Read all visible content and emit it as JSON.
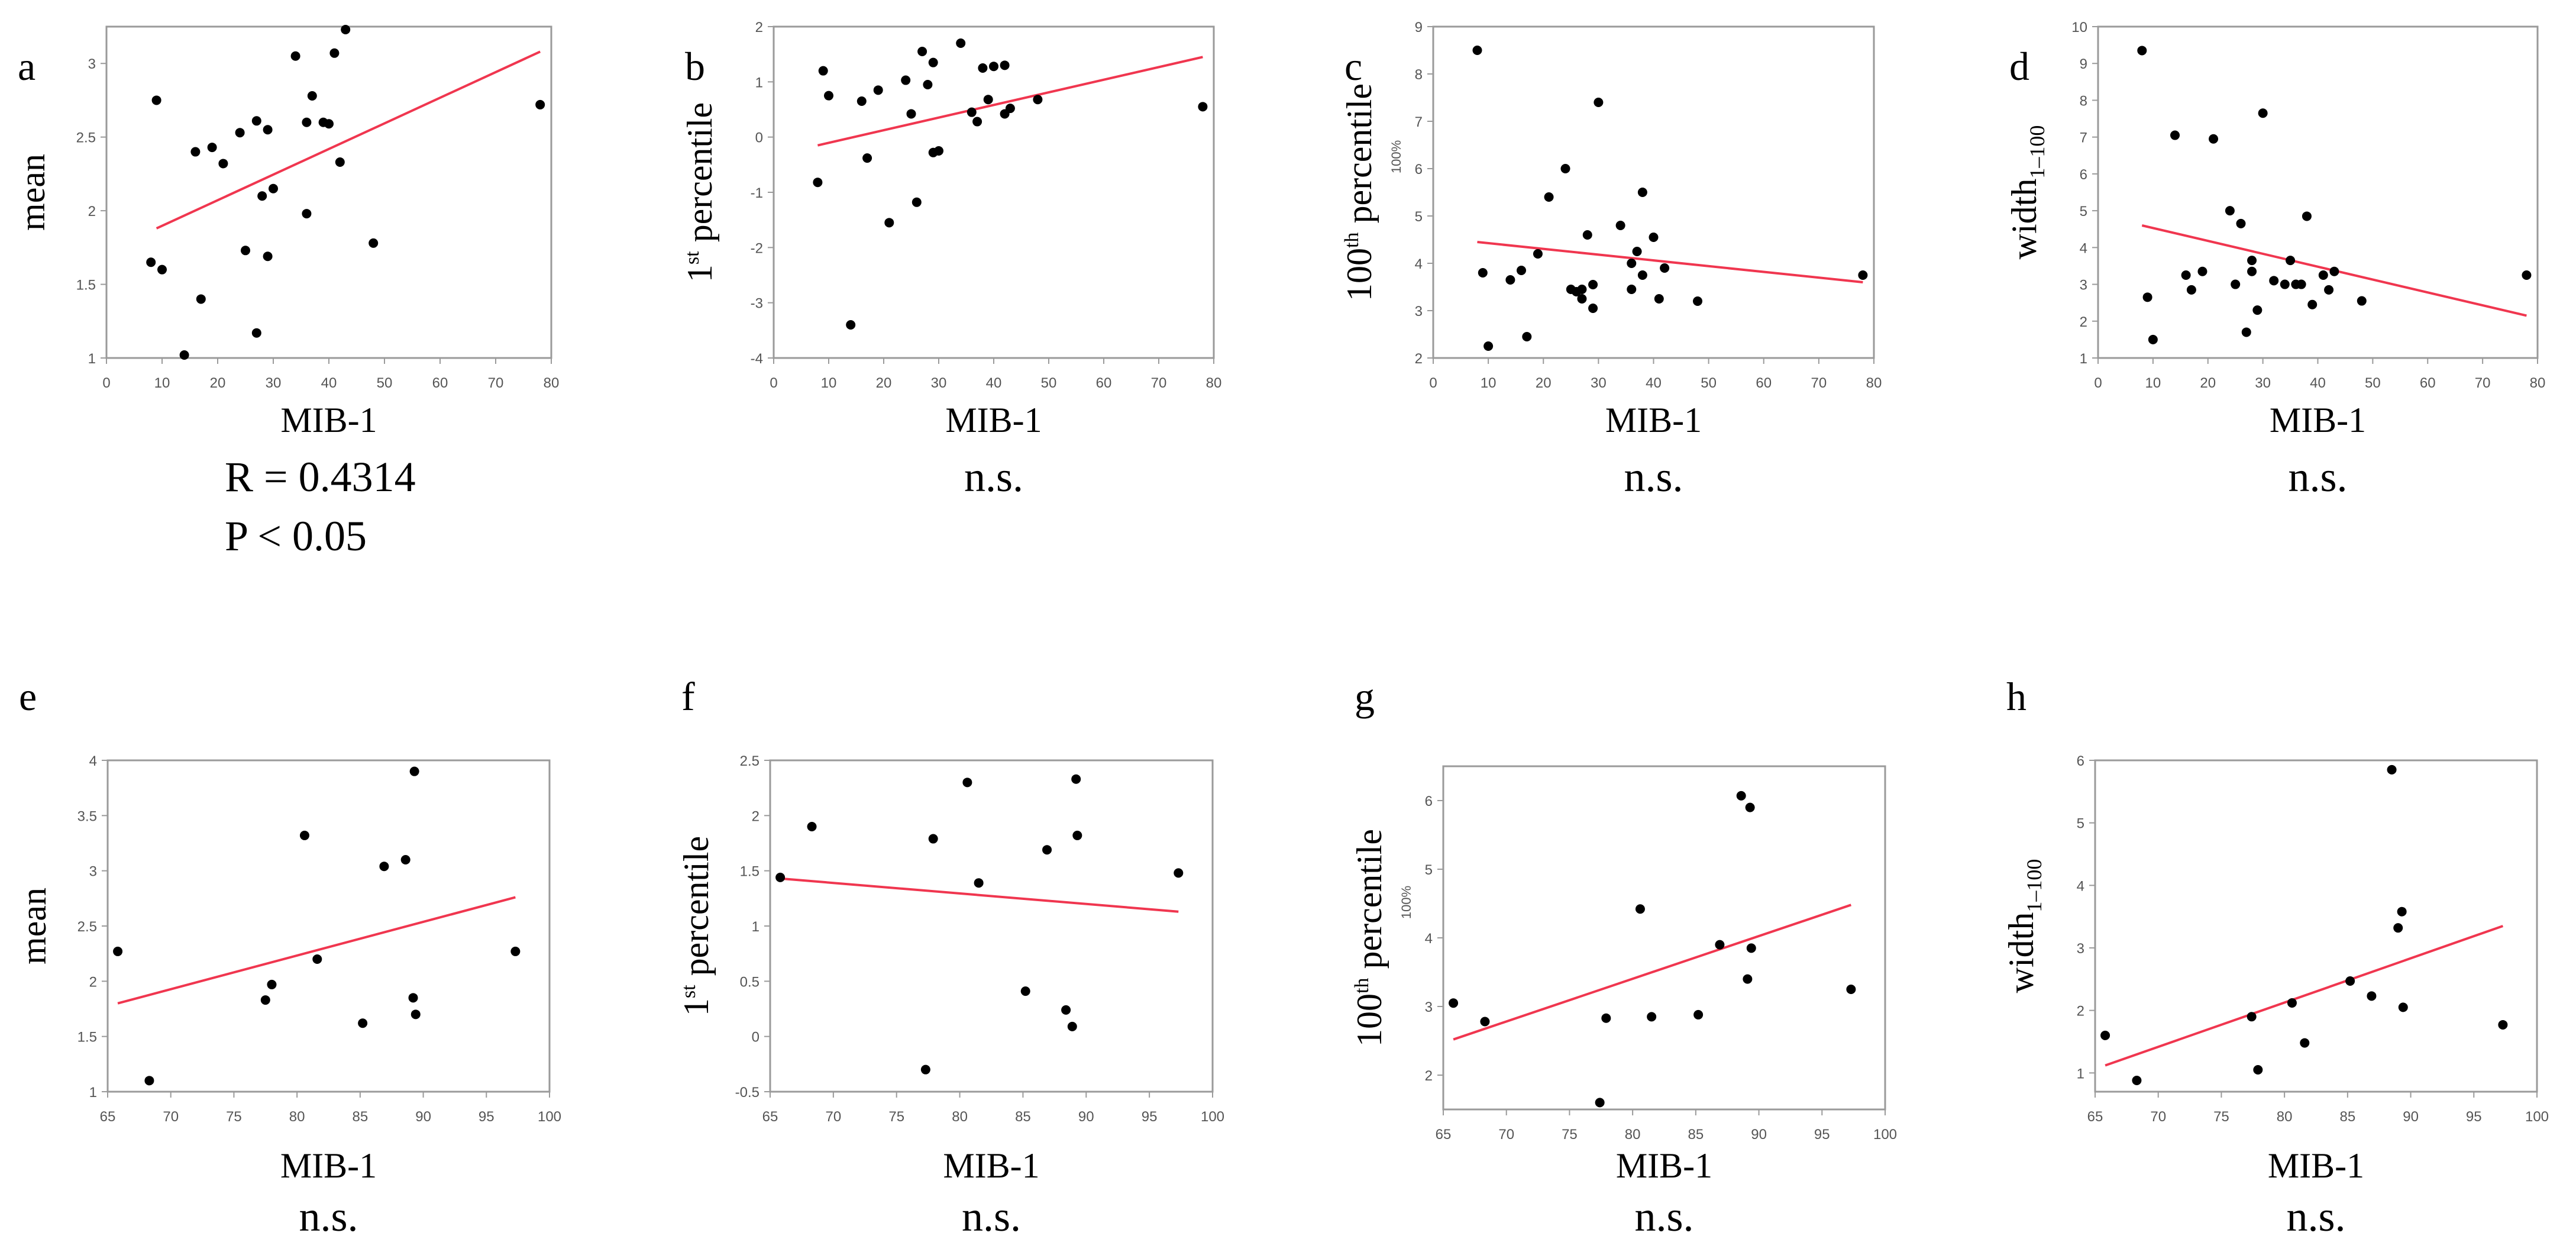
{
  "colors": {
    "axis": "#9a9a9a",
    "point": "#000000",
    "fit": "#f0364f",
    "text": "#000000",
    "tick": "#555555"
  },
  "chart_data": [
    {
      "panel_label": "a",
      "type": "scatter",
      "xlabel": "MIB-1",
      "ylabel": "mean",
      "ylabel_parts": [],
      "xlim": [
        0,
        80
      ],
      "ylim": [
        1,
        3.25
      ],
      "xticks": [
        0,
        10,
        20,
        30,
        40,
        50,
        60,
        70,
        80
      ],
      "xtick_labels": [
        "0",
        "10",
        "20",
        "30",
        "40",
        "50",
        "60",
        "70",
        "80"
      ],
      "yticks": [
        1,
        1.5,
        2,
        2.5,
        3
      ],
      "ytick_labels": [
        "1",
        "1.5",
        "2",
        "2.5",
        "3"
      ],
      "points": [
        [
          8,
          1.65
        ],
        [
          9,
          2.75
        ],
        [
          10,
          1.6
        ],
        [
          14,
          1.02
        ],
        [
          16,
          2.4
        ],
        [
          17,
          1.4
        ],
        [
          19,
          2.43
        ],
        [
          21,
          2.32
        ],
        [
          24,
          2.53
        ],
        [
          25,
          1.73
        ],
        [
          27,
          2.61
        ],
        [
          27,
          1.17
        ],
        [
          28,
          2.1
        ],
        [
          29,
          1.69
        ],
        [
          29,
          2.55
        ],
        [
          30,
          2.15
        ],
        [
          34,
          3.05
        ],
        [
          36,
          2.6
        ],
        [
          36,
          1.98
        ],
        [
          37,
          2.78
        ],
        [
          39,
          2.6
        ],
        [
          40,
          2.59
        ],
        [
          41,
          3.07
        ],
        [
          42,
          2.33
        ],
        [
          43,
          3.23
        ],
        [
          48,
          1.78
        ],
        [
          78,
          2.72
        ]
      ],
      "fit_line": [
        [
          9,
          1.88
        ],
        [
          78,
          3.08
        ]
      ],
      "stats": [
        "R = 0.4314",
        "P < 0.05"
      ]
    },
    {
      "panel_label": "b",
      "type": "scatter",
      "xlabel": "MIB-1",
      "ylabel": "",
      "ylabel_parts": [
        "1",
        "st",
        " percentile"
      ],
      "xlim": [
        0,
        80
      ],
      "ylim": [
        -4,
        2
      ],
      "xticks": [
        0,
        10,
        20,
        30,
        40,
        50,
        60,
        70,
        80
      ],
      "xtick_labels": [
        "0",
        "10",
        "20",
        "30",
        "40",
        "50",
        "60",
        "70",
        "80"
      ],
      "yticks": [
        -4,
        -3,
        -2,
        -1,
        0,
        1,
        2
      ],
      "ytick_labels": [
        "-4",
        "-3",
        "-2",
        "-1",
        "0",
        "1",
        "2"
      ],
      "points": [
        [
          8,
          -0.82
        ],
        [
          9,
          1.2
        ],
        [
          10,
          0.75
        ],
        [
          14,
          -3.4
        ],
        [
          16,
          0.65
        ],
        [
          17,
          -0.38
        ],
        [
          19,
          0.85
        ],
        [
          21,
          -1.55
        ],
        [
          24,
          1.03
        ],
        [
          25,
          0.42
        ],
        [
          26,
          -1.18
        ],
        [
          27,
          1.55
        ],
        [
          28,
          0.95
        ],
        [
          29,
          1.35
        ],
        [
          29,
          -0.28
        ],
        [
          30,
          -0.25
        ],
        [
          34,
          1.7
        ],
        [
          36,
          0.45
        ],
        [
          37,
          0.28
        ],
        [
          38,
          1.25
        ],
        [
          39,
          0.68
        ],
        [
          40,
          1.28
        ],
        [
          42,
          1.3
        ],
        [
          42,
          0.42
        ],
        [
          43,
          0.52
        ],
        [
          48,
          0.68
        ],
        [
          78,
          0.55
        ]
      ],
      "fit_line": [
        [
          8,
          -0.15
        ],
        [
          78,
          1.45
        ]
      ],
      "stats": [
        "n.s."
      ]
    },
    {
      "panel_label": "c",
      "type": "scatter",
      "xlabel": "MIB-1",
      "ylabel": "",
      "ylabel_parts": [
        "100",
        "th",
        " percentile"
      ],
      "ylabel_small": "100%",
      "xlim": [
        0,
        80
      ],
      "ylim": [
        2,
        9
      ],
      "xticks": [
        0,
        10,
        20,
        30,
        40,
        50,
        60,
        70,
        80
      ],
      "xtick_labels": [
        "0",
        "10",
        "20",
        "30",
        "40",
        "50",
        "60",
        "70",
        "80"
      ],
      "yticks": [
        2,
        3,
        4,
        5,
        6,
        7,
        8,
        9
      ],
      "ytick_labels": [
        "2",
        "3",
        "4",
        "5",
        "6",
        "7",
        "8",
        "9"
      ],
      "points": [
        [
          8,
          8.5
        ],
        [
          9,
          3.8
        ],
        [
          10,
          2.25
        ],
        [
          14,
          3.65
        ],
        [
          16,
          3.85
        ],
        [
          17,
          2.45
        ],
        [
          19,
          4.2
        ],
        [
          21,
          5.4
        ],
        [
          24,
          6
        ],
        [
          25,
          3.45
        ],
        [
          26,
          3.4
        ],
        [
          27,
          3.45
        ],
        [
          27,
          3.25
        ],
        [
          28,
          4.6
        ],
        [
          29,
          3.05
        ],
        [
          29,
          3.55
        ],
        [
          30,
          7.4
        ],
        [
          34,
          4.8
        ],
        [
          36,
          3.45
        ],
        [
          36,
          4.0
        ],
        [
          37,
          4.25
        ],
        [
          38,
          5.5
        ],
        [
          38,
          3.75
        ],
        [
          40,
          4.55
        ],
        [
          41,
          3.25
        ],
        [
          42,
          3.9
        ],
        [
          48,
          3.2
        ],
        [
          78,
          3.75
        ]
      ],
      "fit_line": [
        [
          8,
          4.45
        ],
        [
          78,
          3.6
        ]
      ],
      "stats": [
        "n.s."
      ]
    },
    {
      "panel_label": "d",
      "type": "scatter",
      "xlabel": "MIB-1",
      "ylabel": "",
      "ylabel_parts": [
        "width",
        "1–100",
        ""
      ],
      "xlim": [
        0,
        80
      ],
      "ylim": [
        1,
        10
      ],
      "xticks": [
        0,
        10,
        20,
        30,
        40,
        50,
        60,
        70,
        80
      ],
      "xtick_labels": [
        "0",
        "10",
        "20",
        "30",
        "40",
        "50",
        "60",
        "70",
        "80"
      ],
      "yticks": [
        1,
        2,
        3,
        4,
        5,
        6,
        7,
        8,
        9,
        10
      ],
      "ytick_labels": [
        "1",
        "2",
        "3",
        "4",
        "5",
        "6",
        "7",
        "8",
        "9",
        "10"
      ],
      "points": [
        [
          8,
          9.35
        ],
        [
          9,
          2.65
        ],
        [
          10,
          1.5
        ],
        [
          14,
          7.05
        ],
        [
          16,
          3.25
        ],
        [
          17,
          2.85
        ],
        [
          19,
          3.35
        ],
        [
          21,
          6.95
        ],
        [
          24,
          5
        ],
        [
          25,
          3
        ],
        [
          26,
          4.65
        ],
        [
          27,
          1.7
        ],
        [
          28,
          3.65
        ],
        [
          28,
          3.35
        ],
        [
          29,
          2.3
        ],
        [
          30,
          7.65
        ],
        [
          32,
          3.1
        ],
        [
          34,
          3
        ],
        [
          35,
          3.65
        ],
        [
          36,
          3
        ],
        [
          37,
          3
        ],
        [
          38,
          4.85
        ],
        [
          39,
          2.45
        ],
        [
          41,
          3.25
        ],
        [
          42,
          2.85
        ],
        [
          43,
          3.35
        ],
        [
          48,
          2.55
        ],
        [
          78,
          3.25
        ]
      ],
      "fit_line": [
        [
          8,
          4.6
        ],
        [
          78,
          2.15
        ]
      ],
      "stats": [
        "n.s."
      ]
    },
    {
      "panel_label": "e",
      "type": "scatter",
      "xlabel": "MIB-1",
      "ylabel": "mean",
      "ylabel_parts": [],
      "xlim": [
        65,
        100
      ],
      "ylim": [
        1,
        4
      ],
      "xticks": [
        65,
        70,
        75,
        80,
        85,
        90,
        95,
        100
      ],
      "xtick_labels": [
        "65",
        "70",
        "75",
        "80",
        "85",
        "90",
        "95",
        "100"
      ],
      "yticks": [
        1,
        1.5,
        2,
        2.5,
        3,
        3.5,
        4
      ],
      "ytick_labels": [
        "1",
        "1.5",
        "2",
        "2.5",
        "3",
        "3.5",
        "4"
      ],
      "points": [
        [
          65.8,
          2.27
        ],
        [
          68.3,
          1.1
        ],
        [
          77.5,
          1.83
        ],
        [
          78,
          1.97
        ],
        [
          80.6,
          3.32
        ],
        [
          81.6,
          2.2
        ],
        [
          85.2,
          1.62
        ],
        [
          86.9,
          3.04
        ],
        [
          88.6,
          3.1
        ],
        [
          89.2,
          1.85
        ],
        [
          89.3,
          3.9
        ],
        [
          89.4,
          1.7
        ],
        [
          97.3,
          2.27
        ]
      ],
      "fit_line": [
        [
          65.8,
          1.8
        ],
        [
          97.3,
          2.76
        ]
      ],
      "stats": [
        "n.s."
      ]
    },
    {
      "panel_label": "f",
      "type": "scatter",
      "xlabel": "MIB-1",
      "ylabel": "",
      "ylabel_parts": [
        "1",
        "st",
        " percentile"
      ],
      "xlim": [
        65,
        100
      ],
      "ylim": [
        -0.5,
        2.5
      ],
      "xticks": [
        65,
        70,
        75,
        80,
        85,
        90,
        95,
        100
      ],
      "xtick_labels": [
        "65",
        "70",
        "75",
        "80",
        "85",
        "90",
        "95",
        "100"
      ],
      "yticks": [
        -0.5,
        0,
        0.5,
        1,
        1.5,
        2,
        2.5
      ],
      "ytick_labels": [
        "-0.5",
        "0",
        "0.5",
        "1",
        "1.5",
        "2",
        "2.5"
      ],
      "points": [
        [
          65.8,
          1.44
        ],
        [
          68.3,
          1.9
        ],
        [
          77.3,
          -0.3
        ],
        [
          77.9,
          1.79
        ],
        [
          80.6,
          2.3
        ],
        [
          81.5,
          1.39
        ],
        [
          85.2,
          0.41
        ],
        [
          86.9,
          1.69
        ],
        [
          88.4,
          0.24
        ],
        [
          88.9,
          0.09
        ],
        [
          89.2,
          2.33
        ],
        [
          89.3,
          1.82
        ],
        [
          97.3,
          1.48
        ]
      ],
      "fit_line": [
        [
          65.8,
          1.43
        ],
        [
          97.3,
          1.13
        ]
      ],
      "stats": [
        "n.s."
      ]
    },
    {
      "panel_label": "g",
      "type": "scatter",
      "xlabel": "MIB-1",
      "ylabel": "",
      "ylabel_parts": [
        "100",
        "th",
        " percentile"
      ],
      "ylabel_small": "100%",
      "xlim": [
        65,
        100
      ],
      "ylim": [
        1.5,
        6.5
      ],
      "xticks": [
        65,
        70,
        75,
        80,
        85,
        90,
        95,
        100
      ],
      "xtick_labels": [
        "65",
        "70",
        "75",
        "80",
        "85",
        "90",
        "95",
        "100"
      ],
      "yticks": [
        2,
        3,
        4,
        5,
        6
      ],
      "ytick_labels": [
        "2",
        "3",
        "4",
        "5",
        "6"
      ],
      "points": [
        [
          65.8,
          3.05
        ],
        [
          68.3,
          2.78
        ],
        [
          77.4,
          1.6
        ],
        [
          77.9,
          2.83
        ],
        [
          80.6,
          4.42
        ],
        [
          81.5,
          2.85
        ],
        [
          85.2,
          2.88
        ],
        [
          86.9,
          3.9
        ],
        [
          88.6,
          6.07
        ],
        [
          89.1,
          3.4
        ],
        [
          89.3,
          5.9
        ],
        [
          89.4,
          3.85
        ],
        [
          97.3,
          3.25
        ]
      ],
      "fit_line": [
        [
          65.8,
          2.52
        ],
        [
          97.3,
          4.48
        ]
      ],
      "stats": [
        "n.s."
      ]
    },
    {
      "panel_label": "h",
      "type": "scatter",
      "xlabel": "MIB-1",
      "ylabel": "",
      "ylabel_parts": [
        "width",
        "1–100",
        ""
      ],
      "xlim": [
        65,
        100
      ],
      "ylim": [
        0.7,
        6
      ],
      "xticks": [
        65,
        70,
        75,
        80,
        85,
        90,
        95,
        100
      ],
      "xtick_labels": [
        "65",
        "70",
        "75",
        "80",
        "85",
        "90",
        "95",
        "100"
      ],
      "yticks": [
        1,
        2,
        3,
        4,
        5,
        6
      ],
      "ytick_labels": [
        "1",
        "2",
        "3",
        "4",
        "5",
        "6"
      ],
      "points": [
        [
          65.8,
          1.6
        ],
        [
          68.3,
          0.88
        ],
        [
          77.4,
          1.9
        ],
        [
          77.9,
          1.05
        ],
        [
          80.6,
          2.12
        ],
        [
          81.6,
          1.48
        ],
        [
          85.2,
          2.47
        ],
        [
          86.9,
          2.23
        ],
        [
          88.5,
          5.85
        ],
        [
          89.0,
          3.32
        ],
        [
          89.3,
          3.58
        ],
        [
          89.4,
          2.05
        ],
        [
          97.3,
          1.77
        ]
      ],
      "fit_line": [
        [
          65.8,
          1.12
        ],
        [
          97.3,
          3.35
        ]
      ],
      "stats": [
        "n.s."
      ]
    }
  ]
}
